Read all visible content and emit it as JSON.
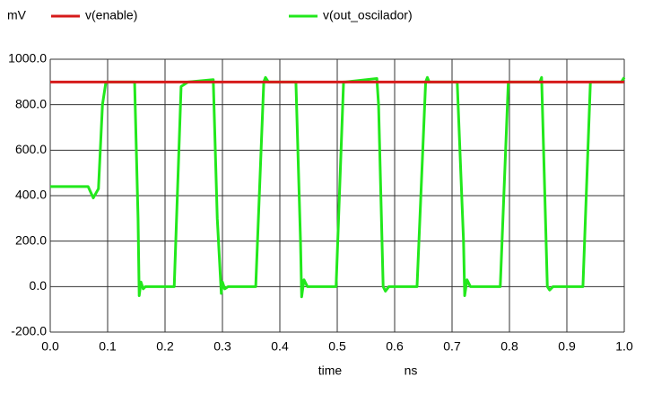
{
  "chart_data": {
    "type": "line",
    "y_unit_label": "mV",
    "x_label": "time",
    "x_unit_label": "ns",
    "grid": true,
    "xlim": [
      0.0,
      1.0
    ],
    "ylim": [
      -200,
      1000
    ],
    "xticks": [
      {
        "value": 0.0,
        "label": "0.0"
      },
      {
        "value": 0.1,
        "label": "0.1"
      },
      {
        "value": 0.2,
        "label": "0.2"
      },
      {
        "value": 0.3,
        "label": "0.3"
      },
      {
        "value": 0.4,
        "label": "0.4"
      },
      {
        "value": 0.5,
        "label": "0.5"
      },
      {
        "value": 0.6,
        "label": "0.6"
      },
      {
        "value": 0.7,
        "label": "0.7"
      },
      {
        "value": 0.8,
        "label": "0.8"
      },
      {
        "value": 0.9,
        "label": "0.9"
      },
      {
        "value": 1.0,
        "label": "1.0"
      }
    ],
    "yticks": [
      {
        "value": -200,
        "label": "-200.0"
      },
      {
        "value": 0,
        "label": "0.0"
      },
      {
        "value": 200,
        "label": "200.0"
      },
      {
        "value": 400,
        "label": "400.0"
      },
      {
        "value": 600,
        "label": "600.0"
      },
      {
        "value": 800,
        "label": "800.0"
      },
      {
        "value": 1000,
        "label": "1000.0"
      }
    ],
    "series": [
      {
        "name": "v(enable)",
        "color": "#d61a1a",
        "x": [
          0.0,
          1.0
        ],
        "values": [
          900,
          900
        ]
      },
      {
        "name": "v(out_oscilador)",
        "color": "#22e81c",
        "x": [
          0,
          0.066,
          0.075,
          0.084,
          0.091,
          0.097,
          0.147,
          0.153,
          0.155,
          0.158,
          0.162,
          0.166,
          0.216,
          0.228,
          0.24,
          0.284,
          0.291,
          0.298,
          0.3,
          0.304,
          0.31,
          0.358,
          0.372,
          0.375,
          0.38,
          0.428,
          0.436,
          0.438,
          0.442,
          0.448,
          0.498,
          0.511,
          0.514,
          0.569,
          0.572,
          0.58,
          0.584,
          0.59,
          0.639,
          0.654,
          0.657,
          0.66,
          0.709,
          0.72,
          0.722,
          0.726,
          0.732,
          0.784,
          0.798,
          0.802,
          0.853,
          0.856,
          0.866,
          0.87,
          0.876,
          0.928,
          0.941,
          0.945,
          0.995,
          1.0
        ],
        "values": [
          440,
          440,
          390,
          430,
          800,
          900,
          900,
          300,
          -40,
          20,
          -10,
          0,
          0,
          880,
          900,
          910,
          300,
          -30,
          20,
          -10,
          0,
          0,
          900,
          920,
          900,
          900,
          200,
          -45,
          30,
          0,
          0,
          900,
          900,
          915,
          800,
          0,
          -20,
          0,
          0,
          900,
          920,
          900,
          900,
          200,
          -40,
          30,
          0,
          0,
          900,
          900,
          900,
          920,
          0,
          -15,
          0,
          0,
          900,
          900,
          900,
          920
        ]
      }
    ]
  }
}
